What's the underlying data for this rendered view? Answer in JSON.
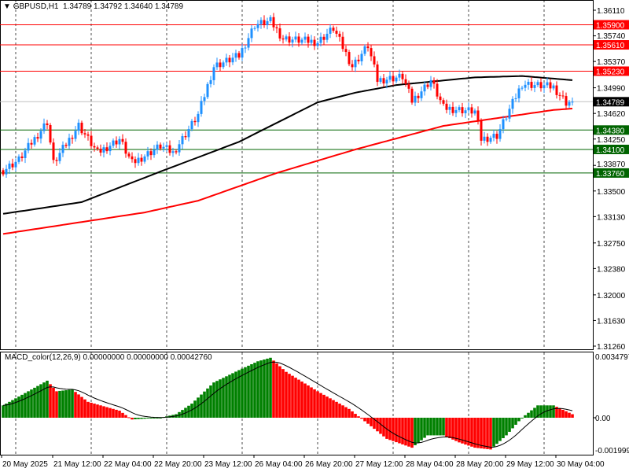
{
  "header": {
    "symbol": "GBPUSD,H1",
    "open": "1.34789",
    "high": "1.34792",
    "low": "1.34640",
    "close": "1.34789"
  },
  "macd_header": {
    "label": "MACD_color(12,26,9)",
    "v1": "0.00000000",
    "v2": "0.00000000",
    "v3": "0.00042760"
  },
  "colors": {
    "bull": "#1e90ff",
    "bear": "#ff0000",
    "ma_slow": "#ff0000",
    "ma_fast": "#000000",
    "hist_up": "#008000",
    "hist_down": "#ff0000",
    "support": "#006400",
    "resist": "#ff0000"
  },
  "chart_data": {
    "type": "candlestick",
    "title": "GBPUSD,H1",
    "ylim": [
      1.3126,
      1.3611
    ],
    "price_ticks": [
      "1.36110",
      "1.35740",
      "1.35370",
      "1.34990",
      "1.34620",
      "1.34250",
      "1.33870",
      "1.33500",
      "1.33130",
      "1.32750",
      "1.32380",
      "1.32000",
      "1.31630",
      "1.31260"
    ],
    "time_labels": [
      "20 May 2025",
      "21 May 12:00",
      "22 May 04:00",
      "22 May 20:00",
      "23 May 12:00",
      "26 May 04:00",
      "26 May 20:00",
      "27 May 12:00",
      "28 May 04:00",
      "28 May 20:00",
      "29 May 12:00",
      "30 May 04:00"
    ],
    "close_keypoints": [
      [
        0,
        1.338
      ],
      [
        5,
        1.3395
      ],
      [
        14,
        1.345
      ],
      [
        16,
        1.339
      ],
      [
        24,
        1.3445
      ],
      [
        30,
        1.3405
      ],
      [
        37,
        1.3425
      ],
      [
        41,
        1.339
      ],
      [
        50,
        1.3415
      ],
      [
        54,
        1.3405
      ],
      [
        62,
        1.346
      ],
      [
        67,
        1.353
      ],
      [
        75,
        1.3545
      ],
      [
        80,
        1.359
      ],
      [
        85,
        1.3595
      ],
      [
        89,
        1.357
      ],
      [
        100,
        1.3565
      ],
      [
        105,
        1.3585
      ],
      [
        111,
        1.353
      ],
      [
        116,
        1.356
      ],
      [
        119,
        1.351
      ],
      [
        127,
        1.3515
      ],
      [
        130,
        1.348
      ],
      [
        136,
        1.351
      ],
      [
        140,
        1.347
      ],
      [
        150,
        1.3465
      ],
      [
        152,
        1.3425
      ],
      [
        157,
        1.343
      ],
      [
        165,
        1.3505
      ],
      [
        175,
        1.35
      ],
      [
        179,
        1.3478
      ],
      [
        181,
        1.34789
      ]
    ],
    "ma_fast_keypoints": [
      [
        0,
        1.3317
      ],
      [
        25,
        1.3334
      ],
      [
        50,
        1.3378
      ],
      [
        75,
        1.3421
      ],
      [
        100,
        1.3478
      ],
      [
        112,
        1.3492
      ],
      [
        125,
        1.3503
      ],
      [
        150,
        1.3514
      ],
      [
        165,
        1.3516
      ],
      [
        181,
        1.351
      ]
    ],
    "ma_slow_keypoints": [
      [
        0,
        1.3288
      ],
      [
        45,
        1.3319
      ],
      [
        62,
        1.3336
      ],
      [
        87,
        1.3376
      ],
      [
        112,
        1.341
      ],
      [
        140,
        1.3444
      ],
      [
        175,
        1.3467
      ],
      [
        181,
        1.3469
      ]
    ],
    "levels": [
      {
        "price": 1.359,
        "label": "1.35900",
        "kind": "resist"
      },
      {
        "price": 1.3561,
        "label": "1.35610",
        "kind": "resist"
      },
      {
        "price": 1.3523,
        "label": "1.35230",
        "kind": "resist"
      },
      {
        "price": 1.34789,
        "label": "1.34789",
        "kind": "current"
      },
      {
        "price": 1.3438,
        "label": "1.34380",
        "kind": "support"
      },
      {
        "price": 1.341,
        "label": "1.34100",
        "kind": "support"
      },
      {
        "price": 1.3376,
        "label": "1.33760",
        "kind": "support"
      }
    ],
    "macd": {
      "ylim": [
        -0.001999,
        0.0034797
      ],
      "tick_labels": [
        "0.0034797",
        "0.00",
        "-0.001999"
      ],
      "hist_keypoints": [
        [
          0,
          0.0007
        ],
        [
          11,
          0.0018
        ],
        [
          14,
          0.0021
        ],
        [
          17,
          0.0015
        ],
        [
          22,
          0.0016
        ],
        [
          27,
          0.0009
        ],
        [
          37,
          0.0004
        ],
        [
          41,
          -0.0001
        ],
        [
          50,
          0
        ],
        [
          55,
          0.0002
        ],
        [
          60,
          0.0008
        ],
        [
          67,
          0.002
        ],
        [
          75,
          0.0027
        ],
        [
          81,
          0.0032
        ],
        [
          85,
          0.0034
        ],
        [
          90,
          0.0026
        ],
        [
          100,
          0.0015
        ],
        [
          110,
          0.0005
        ],
        [
          115,
          -0.0002
        ],
        [
          122,
          -0.0012
        ],
        [
          130,
          -0.0017
        ],
        [
          135,
          -0.001
        ],
        [
          140,
          -0.001
        ],
        [
          145,
          -0.0014
        ],
        [
          150,
          -0.0017
        ],
        [
          155,
          -0.0018
        ],
        [
          160,
          -0.001
        ],
        [
          165,
          0
        ],
        [
          170,
          0.0007
        ],
        [
          175,
          0.0007
        ],
        [
          181,
          0.0002
        ]
      ]
    }
  }
}
